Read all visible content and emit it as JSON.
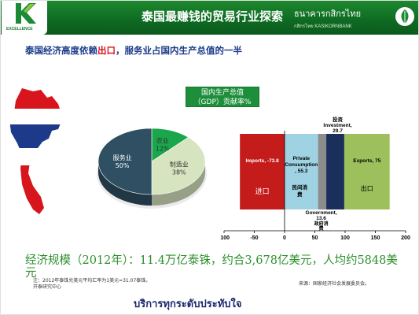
{
  "header": {
    "title": "泰国最赚钱的贸易行业探索",
    "logo_tag": "EXCELLENCE",
    "bank_name_thai": "ธนาคารกสิกรไทย",
    "bank_name_en": "กสิกรไทย KASIKORNBANK"
  },
  "subtitle": {
    "prefix": "泰国经济高度依赖",
    "highlight": "出口",
    "suffix": "，服务业占国内生产总值的一半"
  },
  "gdp_badge": {
    "line1": "国内生产总值",
    "line2": "（GDP）贡献率%"
  },
  "colors": {
    "header_green": "#1a7a2e",
    "accent_red": "#d8141d",
    "navy": "#1a3a8a"
  },
  "chart_data": [
    {
      "type": "pie",
      "slices": [
        {
          "label": "农业",
          "value": 12,
          "display": "12%",
          "color": "#1aa64b"
        },
        {
          "label": "制造业",
          "value": 38,
          "display": "38%",
          "color": "#d6e4c0"
        },
        {
          "label": "服务业",
          "value": 50,
          "display": "50%",
          "color": "#2f4f62"
        }
      ]
    },
    {
      "type": "bar",
      "orientation": "horizontal-waterfall",
      "xlim": [
        -100,
        200
      ],
      "xticks": [
        -100,
        -50,
        0,
        50,
        100,
        150,
        200
      ],
      "segments": [
        {
          "name": "Imports",
          "value": -73.8,
          "start": -73.8,
          "end": 0,
          "label": "Imports, -73.8",
          "thai_label": "进口",
          "color": "#c41b1b"
        },
        {
          "name": "Private Consumption",
          "value": 55.3,
          "start": 0,
          "end": 55.3,
          "label_lines": [
            "Private",
            "Consumption",
            ", 55.3"
          ],
          "thai_label": "民间消费",
          "color": "#9fd3e3"
        },
        {
          "name": "Government",
          "value": 13.6,
          "start": 55.3,
          "end": 68.9,
          "label_lines": [
            "Government,",
            "13.6"
          ],
          "thai_label": "政府消费",
          "color": "#8c8c8c"
        },
        {
          "name": "Investment",
          "value": 29.7,
          "start": 68.9,
          "end": 98.6,
          "label_lines": [
            "投资",
            "Investment,",
            "29.7"
          ],
          "color": "#1a2f5a"
        },
        {
          "name": "Exports",
          "value": 75,
          "start": 98.6,
          "end": 173.6,
          "label": "Exports, 75",
          "thai_label": "出口",
          "color": "#9dbf5c"
        }
      ]
    }
  ],
  "big_line": "经济规模（2012年）：11.4万亿泰铢，约合3,678亿美元，人均约5848美元",
  "notes": {
    "left_line1": "注：2012年泰铢兑美元平均汇率为1美元=31.07泰铢。",
    "left_line2": "开泰研究中心",
    "right": "来源：国家经济社会发展委员会。"
  },
  "slogan": "บริการทุกระดับประทับใจ"
}
